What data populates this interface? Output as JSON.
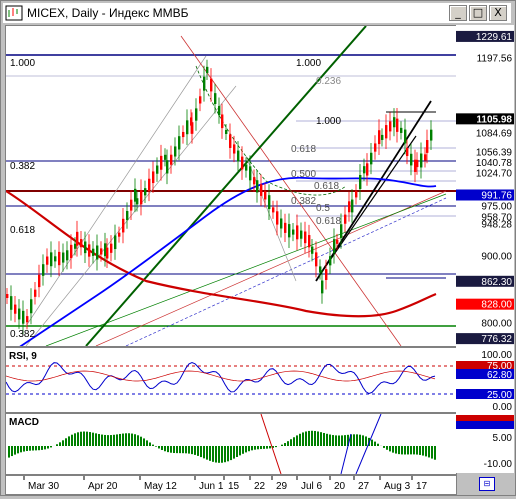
{
  "window": {
    "title": "MICEX, Daily - Индекс ММВБ",
    "buttons": [
      "_",
      "□",
      "X"
    ]
  },
  "price_scale": {
    "labels": [
      {
        "v": "1229.61",
        "style": "box-dark"
      },
      {
        "v": "1197.56",
        "style": "plain"
      },
      {
        "v": "1105.98",
        "style": "box-black"
      },
      {
        "v": "1084.69",
        "style": "plain"
      },
      {
        "v": "1056.39",
        "style": "plain"
      },
      {
        "v": "1040.78",
        "style": "plain"
      },
      {
        "v": "1024.70",
        "style": "plain"
      },
      {
        "v": "991.76",
        "style": "box-blue"
      },
      {
        "v": "975.00",
        "style": "plain"
      },
      {
        "v": "958.70",
        "style": "plain"
      },
      {
        "v": "948.28",
        "style": "plain"
      },
      {
        "v": "900.00",
        "style": "plain"
      },
      {
        "v": "862.30",
        "style": "box-dark"
      },
      {
        "v": "828.00",
        "style": "box-red"
      },
      {
        "v": "800.00",
        "style": "plain"
      },
      {
        "v": "776.32",
        "style": "box-dark"
      }
    ]
  },
  "fib_labels": [
    "1.000",
    "1.000",
    "0.236",
    "1.000",
    "0.382",
    "0.618",
    "0.500",
    "0.618",
    "0.382",
    "0.618",
    "0.382",
    "0.5",
    "0.618"
  ],
  "rsi": {
    "title": "RSI, 9",
    "scale": [
      "100.00",
      "75.00",
      "62.80",
      "25.00",
      "0.00"
    ]
  },
  "macd": {
    "title": "MACD",
    "scale": [
      "5.00",
      "-10.00"
    ]
  },
  "x_axis": [
    "Mar 30",
    "Apr 20",
    "May 12",
    "Jun 1",
    "15",
    "22",
    "29",
    "Jul 6",
    "20",
    "27",
    "Aug 3",
    "17"
  ],
  "colors": {
    "bull": "#008000",
    "bear": "#ff0000",
    "ma_blue": "#0000ff",
    "ma_red": "#cc0000",
    "navy": "#000080",
    "trend_green": "#006000"
  }
}
